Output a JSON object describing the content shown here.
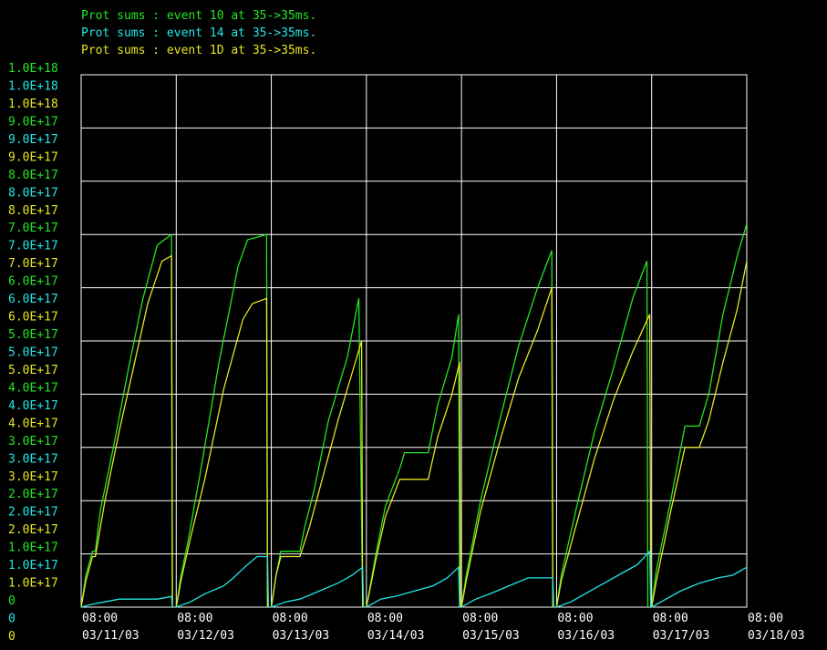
{
  "chart_data": {
    "type": "line",
    "legend": [
      {
        "label": "Prot sums : event 10 at 35->35ms.",
        "color": "#22e622"
      },
      {
        "label": "Prot sums : event 14 at 35->35ms.",
        "color": "#22e6e6"
      },
      {
        "label": "Prot sums : event 1D at 35->35ms.",
        "color": "#e6e622"
      }
    ],
    "yticks": [
      {
        "l": [
          "1.0E+18",
          "1.0E+18",
          "1.0E+18"
        ]
      },
      {
        "l": [
          "9.0E+17",
          "9.0E+17",
          "9.0E+17"
        ]
      },
      {
        "l": [
          "8.0E+17",
          "8.0E+17",
          "8.0E+17"
        ]
      },
      {
        "l": [
          "7.0E+17",
          "7.0E+17",
          "7.0E+17"
        ]
      },
      {
        "l": [
          "6.0E+17",
          "6.0E+17",
          "6.0E+17"
        ]
      },
      {
        "l": [
          "5.0E+17",
          "5.0E+17",
          "5.0E+17"
        ]
      },
      {
        "l": [
          "4.0E+17",
          "4.0E+17",
          "4.0E+17"
        ]
      },
      {
        "l": [
          "3.0E+17",
          "3.0E+17",
          "3.0E+17"
        ]
      },
      {
        "l": [
          "2.0E+17",
          "2.0E+17",
          "2.0E+17"
        ]
      },
      {
        "l": [
          "1.0E+17",
          "1.0E+17",
          "1.0E+17"
        ]
      },
      {
        "l": [
          "0",
          "0",
          "0"
        ]
      }
    ],
    "xticks": [
      {
        "time": "08:00",
        "date": "03/11/03"
      },
      {
        "time": "08:00",
        "date": "03/12/03"
      },
      {
        "time": "08:00",
        "date": "03/13/03"
      },
      {
        "time": "08:00",
        "date": "03/14/03"
      },
      {
        "time": "08:00",
        "date": "03/15/03"
      },
      {
        "time": "08:00",
        "date": "03/16/03"
      },
      {
        "time": "08:00",
        "date": "03/17/03"
      },
      {
        "time": "08:00",
        "date": "03/18/03"
      }
    ],
    "ylim": [
      0,
      1e+18
    ],
    "xlim_days": [
      0,
      7
    ],
    "grid": true,
    "series": [
      {
        "name": "Prot sums : event 10 at 35->35ms.",
        "color": "#22e622",
        "segments": [
          [
            [
              0,
              0
            ],
            [
              0.05,
              6e+16
            ],
            [
              0.12,
              1.05e+17
            ],
            [
              0.15,
              1.05e+17
            ],
            [
              0.2,
              1.8e+17
            ],
            [
              0.35,
              3.1e+17
            ],
            [
              0.5,
              4.5e+17
            ],
            [
              0.65,
              5.8e+17
            ],
            [
              0.8,
              6.8e+17
            ],
            [
              0.95,
              7e+17
            ],
            [
              0.96,
              0
            ]
          ],
          [
            [
              1.0,
              0
            ],
            [
              1.05,
              6e+16
            ],
            [
              1.12,
              1.2e+17
            ],
            [
              1.25,
              2.5e+17
            ],
            [
              1.45,
              4.6e+17
            ],
            [
              1.65,
              6.4e+17
            ],
            [
              1.75,
              6.9e+17
            ],
            [
              1.95,
              7e+17
            ],
            [
              1.96,
              0
            ]
          ],
          [
            [
              2.0,
              0
            ],
            [
              2.05,
              6e+16
            ],
            [
              2.1,
              1.05e+17
            ],
            [
              2.3,
              1.05e+17
            ],
            [
              2.35,
              1.5e+17
            ],
            [
              2.45,
              2.2e+17
            ],
            [
              2.6,
              3.5e+17
            ],
            [
              2.8,
              4.7e+17
            ],
            [
              2.92,
              5.8e+17
            ],
            [
              2.96,
              0
            ]
          ],
          [
            [
              3.0,
              0
            ],
            [
              3.1,
              1e+17
            ],
            [
              3.2,
              1.9e+17
            ],
            [
              3.35,
              2.6e+17
            ],
            [
              3.4,
              2.9e+17
            ],
            [
              3.65,
              2.9e+17
            ],
            [
              3.75,
              3.8e+17
            ],
            [
              3.9,
              4.7e+17
            ],
            [
              3.97,
              5.5e+17
            ],
            [
              3.98,
              0
            ]
          ],
          [
            [
              4.0,
              0
            ],
            [
              4.05,
              6e+16
            ],
            [
              4.2,
              2e+17
            ],
            [
              4.4,
              3.5e+17
            ],
            [
              4.6,
              4.9e+17
            ],
            [
              4.8,
              6e+17
            ],
            [
              4.95,
              6.7e+17
            ],
            [
              4.96,
              0
            ]
          ],
          [
            [
              5.0,
              0
            ],
            [
              5.05,
              6e+16
            ],
            [
              5.2,
              1.8e+17
            ],
            [
              5.4,
              3.3e+17
            ],
            [
              5.6,
              4.5e+17
            ],
            [
              5.8,
              5.8e+17
            ],
            [
              5.95,
              6.5e+17
            ],
            [
              5.96,
              0
            ]
          ],
          [
            [
              6.0,
              0
            ],
            [
              6.05,
              7e+16
            ],
            [
              6.2,
              2e+17
            ],
            [
              6.35,
              3.4e+17
            ],
            [
              6.5,
              3.4e+17
            ],
            [
              6.6,
              4e+17
            ],
            [
              6.75,
              5.5e+17
            ],
            [
              6.9,
              6.6e+17
            ],
            [
              7.0,
              7.2e+17
            ]
          ]
        ]
      },
      {
        "name": "Prot sums : event 1D at 35->35ms.",
        "color": "#e6e622",
        "segments": [
          [
            [
              0,
              0
            ],
            [
              0.05,
              5e+16
            ],
            [
              0.12,
              9.5e+16
            ],
            [
              0.15,
              9.5e+16
            ],
            [
              0.25,
              2e+17
            ],
            [
              0.4,
              3.3e+17
            ],
            [
              0.55,
              4.5e+17
            ],
            [
              0.7,
              5.7e+17
            ],
            [
              0.85,
              6.5e+17
            ],
            [
              0.95,
              6.6e+17
            ],
            [
              0.96,
              0
            ]
          ],
          [
            [
              1.0,
              0
            ],
            [
              1.05,
              5e+16
            ],
            [
              1.15,
              1.3e+17
            ],
            [
              1.3,
              2.4e+17
            ],
            [
              1.5,
              4.1e+17
            ],
            [
              1.7,
              5.4e+17
            ],
            [
              1.8,
              5.7e+17
            ],
            [
              1.95,
              5.8e+17
            ],
            [
              1.96,
              0
            ]
          ],
          [
            [
              2.0,
              0
            ],
            [
              2.05,
              6e+16
            ],
            [
              2.1,
              9.5e+16
            ],
            [
              2.3,
              9.5e+16
            ],
            [
              2.4,
              1.5e+17
            ],
            [
              2.55,
              2.5e+17
            ],
            [
              2.7,
              3.5e+17
            ],
            [
              2.85,
              4.4e+17
            ],
            [
              2.95,
              5e+17
            ],
            [
              2.96,
              0
            ]
          ],
          [
            [
              3.0,
              0
            ],
            [
              3.1,
              9e+16
            ],
            [
              3.2,
              1.7e+17
            ],
            [
              3.35,
              2.4e+17
            ],
            [
              3.42,
              2.4e+17
            ],
            [
              3.65,
              2.4e+17
            ],
            [
              3.75,
              3.2e+17
            ],
            [
              3.9,
              4e+17
            ],
            [
              3.98,
              4.6e+17
            ],
            [
              3.99,
              0
            ]
          ],
          [
            [
              4.0,
              0
            ],
            [
              4.05,
              5e+16
            ],
            [
              4.2,
              1.8e+17
            ],
            [
              4.4,
              3.1e+17
            ],
            [
              4.6,
              4.3e+17
            ],
            [
              4.8,
              5.2e+17
            ],
            [
              4.95,
              6e+17
            ],
            [
              4.96,
              0
            ]
          ],
          [
            [
              5.0,
              0
            ],
            [
              5.05,
              5e+16
            ],
            [
              5.2,
              1.5e+17
            ],
            [
              5.4,
              2.8e+17
            ],
            [
              5.6,
              3.9e+17
            ],
            [
              5.8,
              4.8e+17
            ],
            [
              5.98,
              5.5e+17
            ],
            [
              5.99,
              0
            ]
          ],
          [
            [
              6.0,
              0
            ],
            [
              6.05,
              5e+16
            ],
            [
              6.2,
              1.8e+17
            ],
            [
              6.35,
              3e+17
            ],
            [
              6.5,
              3e+17
            ],
            [
              6.6,
              3.5e+17
            ],
            [
              6.75,
              4.6e+17
            ],
            [
              6.9,
              5.6e+17
            ],
            [
              7.0,
              6.5e+17
            ]
          ]
        ]
      },
      {
        "name": "Prot sums : event 14 at 35->35ms.",
        "color": "#22e6e6",
        "segments": [
          [
            [
              0,
              0
            ],
            [
              0.1,
              5000000000000000.0
            ],
            [
              0.25,
              1e+16
            ],
            [
              0.4,
              1.5e+16
            ],
            [
              0.6,
              1.5e+16
            ],
            [
              0.8,
              1.5e+16
            ],
            [
              0.95,
              2e+16
            ],
            [
              0.96,
              0
            ]
          ],
          [
            [
              1.0,
              0
            ],
            [
              1.15,
              1e+16
            ],
            [
              1.3,
              2.5e+16
            ],
            [
              1.5,
              4e+16
            ],
            [
              1.6,
              5.5e+16
            ],
            [
              1.75,
              8e+16
            ],
            [
              1.85,
              9.5e+16
            ],
            [
              1.96,
              9.5e+16
            ],
            [
              1.97,
              0
            ]
          ],
          [
            [
              2.0,
              0
            ],
            [
              2.15,
              1e+16
            ],
            [
              2.3,
              1.5e+16
            ],
            [
              2.5,
              3e+16
            ],
            [
              2.7,
              4.5e+16
            ],
            [
              2.85,
              6e+16
            ],
            [
              2.96,
              7.5e+16
            ],
            [
              2.97,
              0
            ]
          ],
          [
            [
              3.0,
              0
            ],
            [
              3.15,
              1.5e+16
            ],
            [
              3.3,
              2e+16
            ],
            [
              3.5,
              3e+16
            ],
            [
              3.7,
              4e+16
            ],
            [
              3.85,
              5.5e+16
            ],
            [
              3.97,
              7.5e+16
            ],
            [
              3.98,
              0
            ]
          ],
          [
            [
              4.0,
              0
            ],
            [
              4.15,
              1.5e+16
            ],
            [
              4.3,
              2.5e+16
            ],
            [
              4.5,
              4e+16
            ],
            [
              4.7,
              5.5e+16
            ],
            [
              4.96,
              5.5e+16
            ],
            [
              4.97,
              0
            ]
          ],
          [
            [
              5.0,
              0
            ],
            [
              5.15,
              1e+16
            ],
            [
              5.3,
              2.5e+16
            ],
            [
              5.5,
              4.5e+16
            ],
            [
              5.7,
              6.5e+16
            ],
            [
              5.85,
              8e+16
            ],
            [
              5.98,
              1.05e+17
            ],
            [
              5.99,
              0
            ]
          ],
          [
            [
              6.0,
              0
            ],
            [
              6.15,
              1.5e+16
            ],
            [
              6.3,
              3e+16
            ],
            [
              6.5,
              4.5e+16
            ],
            [
              6.7,
              5.5e+16
            ],
            [
              6.85,
              6e+16
            ],
            [
              7.0,
              7.5e+16
            ]
          ]
        ]
      }
    ]
  }
}
